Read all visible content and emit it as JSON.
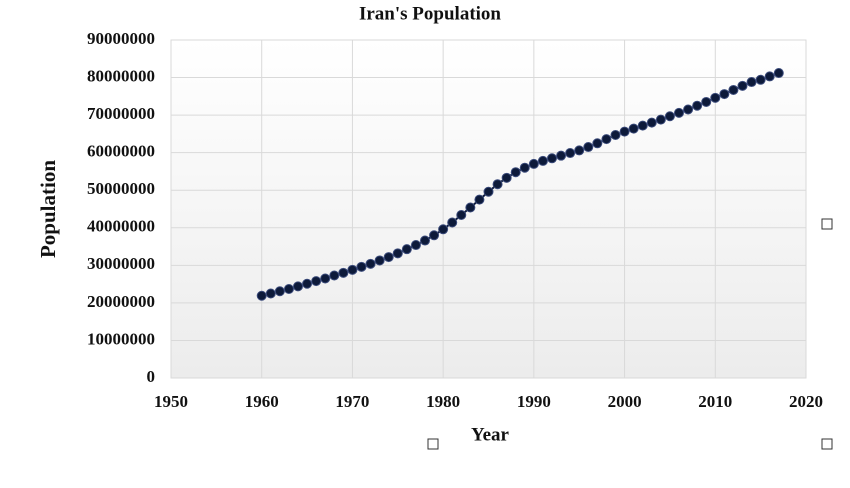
{
  "chart_data": {
    "type": "line",
    "title": "Iran's Population",
    "x_label": "Year",
    "y_label": "Population",
    "x": [
      1960,
      1961,
      1962,
      1963,
      1964,
      1965,
      1966,
      1967,
      1968,
      1969,
      1970,
      1971,
      1972,
      1973,
      1974,
      1975,
      1976,
      1977,
      1978,
      1979,
      1980,
      1981,
      1982,
      1983,
      1984,
      1985,
      1986,
      1987,
      1988,
      1989,
      1990,
      1991,
      1992,
      1993,
      1994,
      1995,
      1996,
      1997,
      1998,
      1999,
      2000,
      2001,
      2002,
      2003,
      2004,
      2005,
      2006,
      2007,
      2008,
      2009,
      2010,
      2011,
      2012,
      2013,
      2014,
      2015,
      2016,
      2017
    ],
    "values": [
      21900000,
      22500000,
      23100000,
      23700000,
      24400000,
      25100000,
      25800000,
      26500000,
      27300000,
      28000000,
      28800000,
      29600000,
      30400000,
      31300000,
      32200000,
      33200000,
      34300000,
      35400000,
      36600000,
      38000000,
      39600000,
      41400000,
      43400000,
      45400000,
      47500000,
      49600000,
      51600000,
      53300000,
      54800000,
      56000000,
      57000000,
      57800000,
      58500000,
      59200000,
      59900000,
      60600000,
      61500000,
      62500000,
      63600000,
      64700000,
      65600000,
      66400000,
      67200000,
      68000000,
      68800000,
      69700000,
      70600000,
      71500000,
      72500000,
      73500000,
      74600000,
      75600000,
      76700000,
      77800000,
      78800000,
      79400000,
      80300000,
      81200000
    ],
    "color": "#0d1a3a",
    "xlim": [
      1950,
      2020
    ],
    "xticks": [
      1950,
      1960,
      1970,
      1980,
      1990,
      2000,
      2010,
      2020
    ],
    "ylim": [
      0,
      90000000
    ],
    "yticks": [
      0,
      10000000,
      20000000,
      30000000,
      40000000,
      50000000,
      60000000,
      70000000,
      80000000,
      90000000
    ],
    "grid": true
  }
}
